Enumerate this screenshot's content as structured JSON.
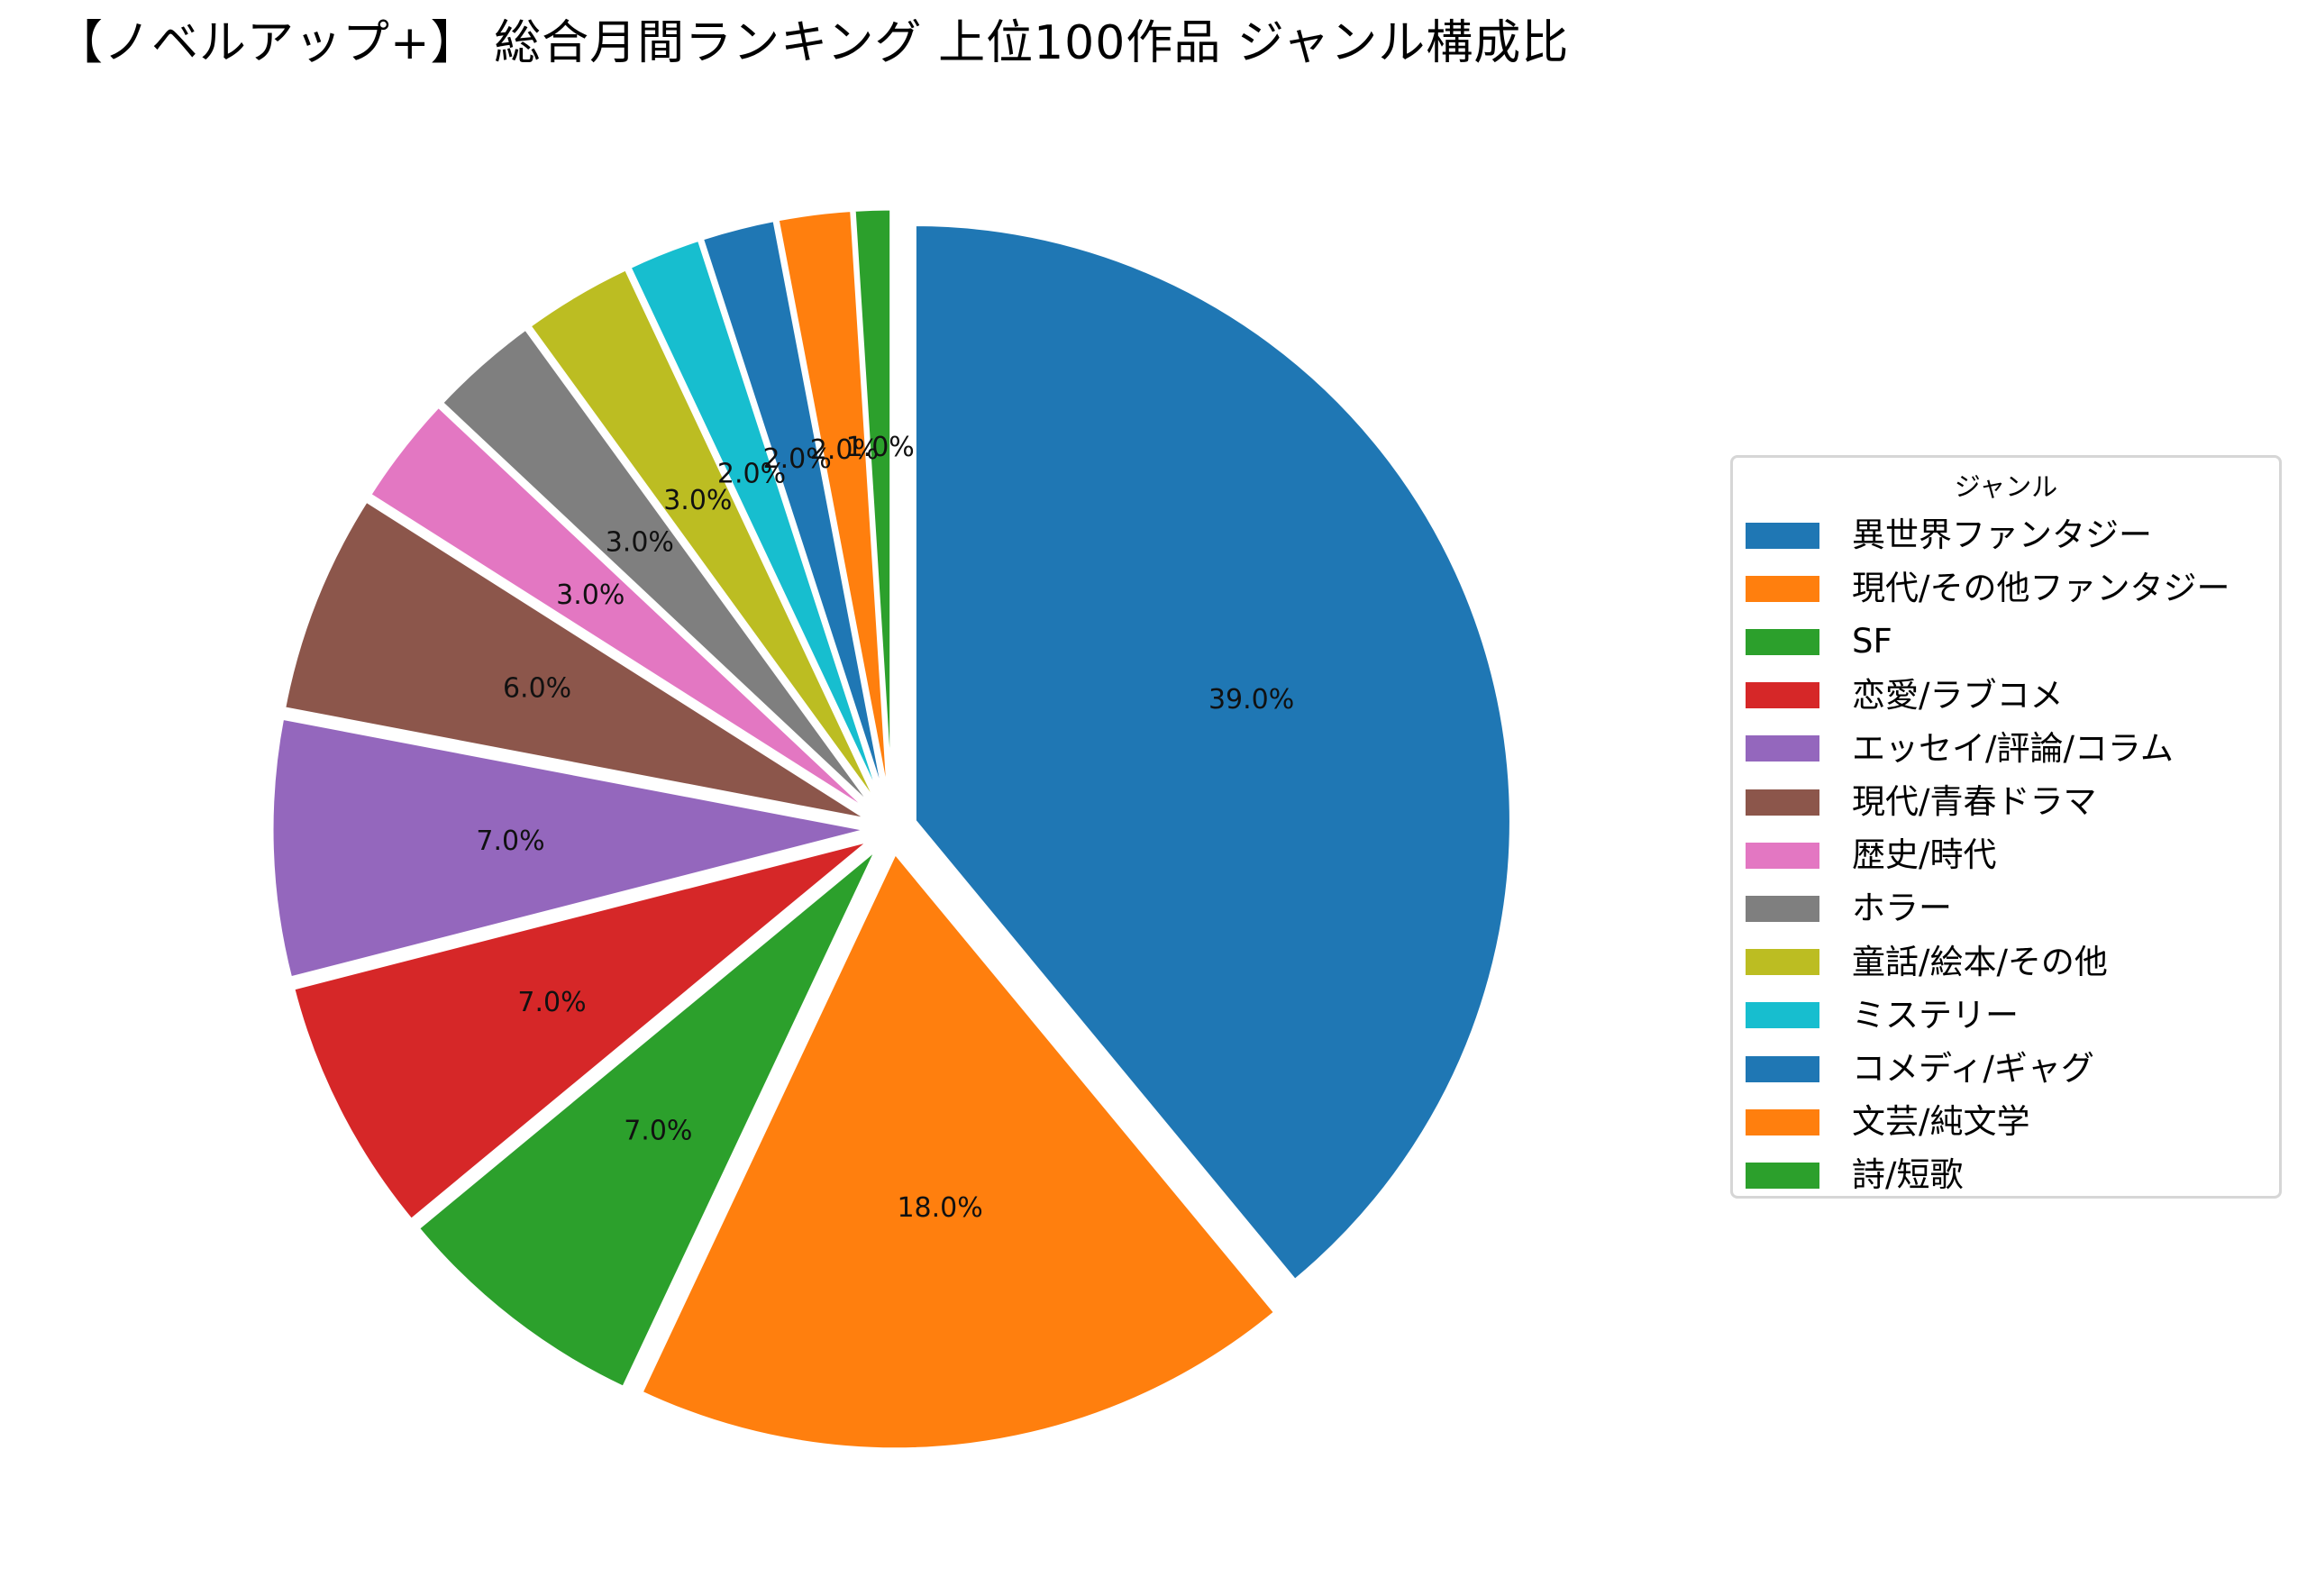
{
  "title": "【ノベルアップ+】 総合月間ランキング 上位100作品 ジャンル構成比",
  "chart_data": {
    "type": "pie",
    "title": "【ノベルアップ+】 総合月間ランキング 上位100作品 ジャンル構成比",
    "legend_title": "ジャンル",
    "legend_position": "right",
    "start_angle": 90,
    "direction": "clockwise",
    "categories": [
      "異世界ファンタジー",
      "現代/その他ファンタジー",
      "SF",
      "恋愛/ラブコメ",
      "エッセイ/評論/コラム",
      "現代/青春ドラマ",
      "歴史/時代",
      "ホラー",
      "童話/絵本/その他",
      "ミステリー",
      "コメディ/ギャグ",
      "文芸/純文学",
      "詩/短歌"
    ],
    "values": [
      39,
      18,
      7,
      7,
      7,
      6,
      3,
      3,
      3,
      2,
      2,
      2,
      1
    ],
    "labels": [
      "39.0%",
      "18.0%",
      "7.0%",
      "7.0%",
      "7.0%",
      "6.0%",
      "3.0%",
      "3.0%",
      "3.0%",
      "2.0%",
      "2.0%",
      "2.0%",
      "1.0%"
    ],
    "colors": [
      "#1f77b4",
      "#ff7f0e",
      "#2ca02c",
      "#d62728",
      "#9467bd",
      "#8c564b",
      "#e377c2",
      "#7f7f7f",
      "#bcbd22",
      "#17becf",
      "#1f77b4",
      "#ff7f0e",
      "#2ca02c"
    ],
    "explode": 0.04
  },
  "legend": {
    "title": "ジャンル",
    "items": [
      {
        "label": "異世界ファンタジー",
        "color": "#1f77b4"
      },
      {
        "label": "現代/その他ファンタジー",
        "color": "#ff7f0e"
      },
      {
        "label": "SF",
        "color": "#2ca02c"
      },
      {
        "label": "恋愛/ラブコメ",
        "color": "#d62728"
      },
      {
        "label": "エッセイ/評論/コラム",
        "color": "#9467bd"
      },
      {
        "label": "現代/青春ドラマ",
        "color": "#8c564b"
      },
      {
        "label": "歴史/時代",
        "color": "#e377c2"
      },
      {
        "label": "ホラー",
        "color": "#7f7f7f"
      },
      {
        "label": "童話/絵本/その他",
        "color": "#bcbd22"
      },
      {
        "label": "ミステリー",
        "color": "#17becf"
      },
      {
        "label": "コメディ/ギャグ",
        "color": "#1f77b4"
      },
      {
        "label": "文芸/純文学",
        "color": "#ff7f0e"
      },
      {
        "label": "詩/短歌",
        "color": "#2ca02c"
      }
    ]
  }
}
